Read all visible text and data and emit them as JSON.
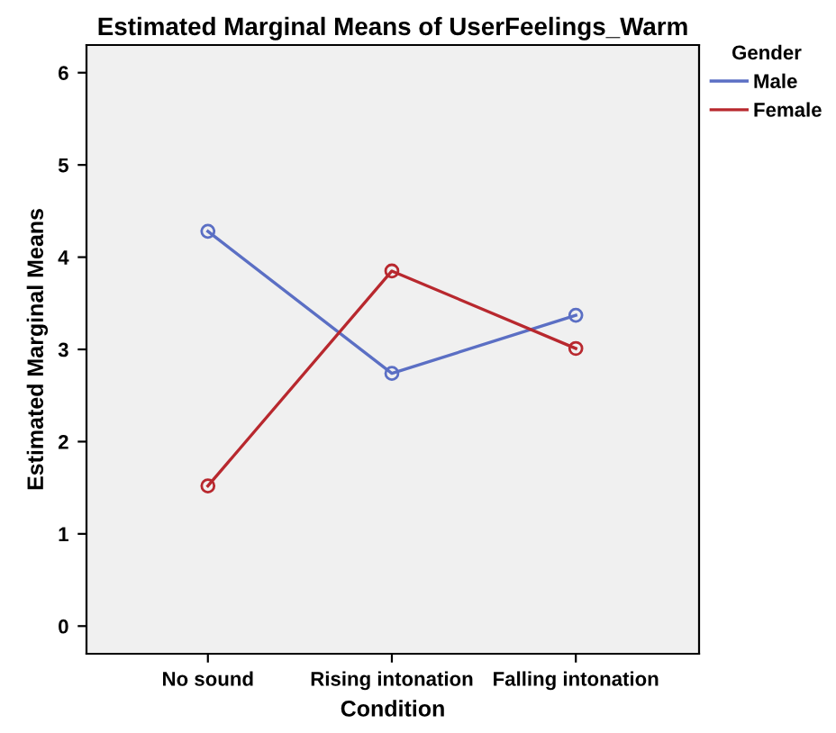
{
  "chart_data": {
    "type": "line",
    "title": "Estimated Marginal Means of UserFeelings_Warm",
    "xlabel": "Condition",
    "ylabel": "Estimated Marginal Means",
    "legend_title": "Gender",
    "categories": [
      "No sound",
      "Rising intonation",
      "Falling intonation"
    ],
    "series": [
      {
        "name": "Male",
        "color": "#5b6fc4",
        "values": [
          4.28,
          2.74,
          3.37
        ]
      },
      {
        "name": "Female",
        "color": "#b8282e",
        "values": [
          1.52,
          3.85,
          3.01
        ]
      }
    ],
    "ylim": [
      -0.3,
      6.3
    ],
    "yticks": [
      0,
      1,
      2,
      3,
      4,
      5,
      6
    ],
    "grid": false,
    "legend": "top right",
    "marker": "circle",
    "line_style": "solid"
  }
}
